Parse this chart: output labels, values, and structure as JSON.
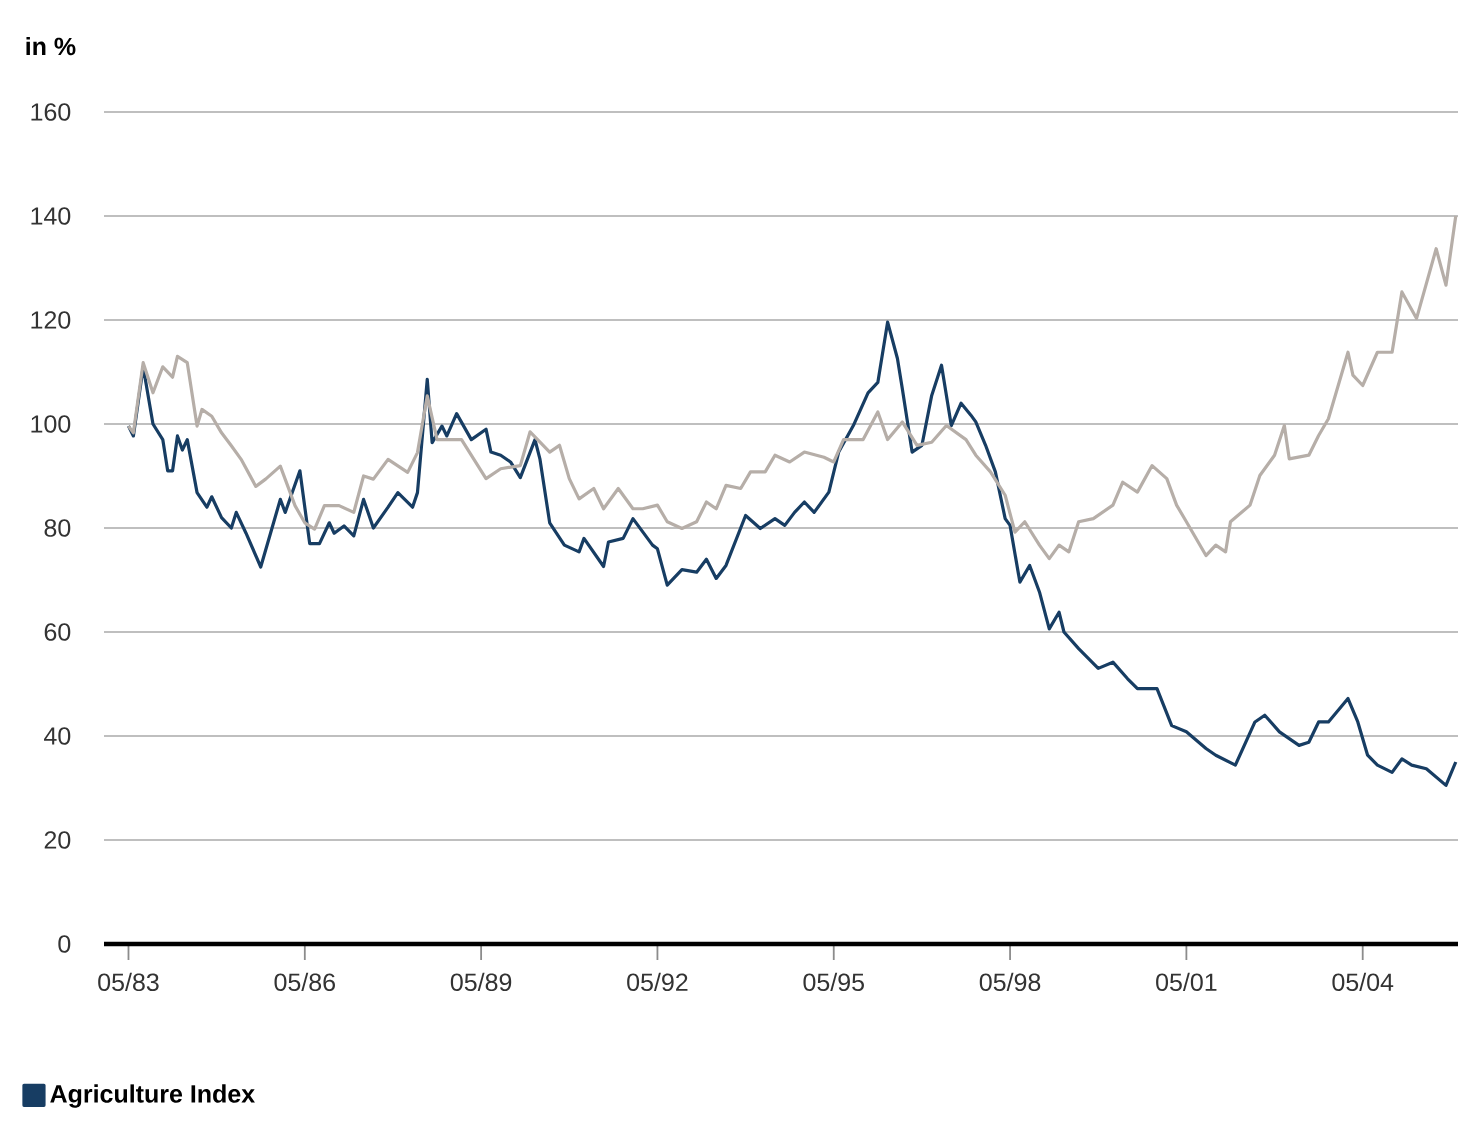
{
  "chart_data": {
    "type": "line",
    "ylabel": "in %",
    "grid": "y",
    "legend": "bottom left",
    "xlim": [
      "1982-12",
      "2005-12-15"
    ],
    "xticks": [
      {
        "value": "1983-05",
        "label": "05/83"
      },
      {
        "value": "1986-05",
        "label": "05/86"
      },
      {
        "value": "1989-05",
        "label": "05/89"
      },
      {
        "value": "1992-05",
        "label": "05/92"
      },
      {
        "value": "1995-05",
        "label": "05/95"
      },
      {
        "value": "1998-05",
        "label": "05/98"
      },
      {
        "value": "2001-05",
        "label": "05/01"
      },
      {
        "value": "2004-05",
        "label": "05/04"
      }
    ],
    "ylim": [
      0,
      160
    ],
    "yticks": [
      0,
      20,
      40,
      60,
      80,
      100,
      120,
      140,
      160
    ],
    "series": [
      {
        "name": "Agriculture Index",
        "color": "#173d63",
        "x": [
          "1983-05",
          "1983-06",
          "1983-08",
          "1983-10",
          "1983-12",
          "1984-01",
          "1984-02",
          "1984-03",
          "1984-04",
          "1984-05",
          "1984-07",
          "1984-09",
          "1984-10",
          "1984-12",
          "1985-02",
          "1985-03",
          "1985-05",
          "1985-08",
          "1985-10",
          "1985-12",
          "1986-01",
          "1986-04",
          "1986-06",
          "1986-08",
          "1986-10",
          "1986-11",
          "1987-01",
          "1987-03",
          "1987-05",
          "1987-07",
          "1987-10",
          "1987-12",
          "1988-03",
          "1988-04",
          "1988-06",
          "1988-07",
          "1988-09",
          "1988-10",
          "1988-12",
          "1989-03",
          "1989-06",
          "1989-07",
          "1989-09",
          "1989-11",
          "1990-01",
          "1990-04",
          "1990-05",
          "1990-07",
          "1990-10",
          "1991-01",
          "1991-02",
          "1991-06",
          "1991-07",
          "1991-10",
          "1991-12",
          "1992-04",
          "1992-05",
          "1992-07",
          "1992-10",
          "1993-01",
          "1993-03",
          "1993-05",
          "1993-07",
          "1993-11",
          "1994-02",
          "1994-05",
          "1994-07",
          "1994-09",
          "1994-11",
          "1995-01",
          "1995-04",
          "1995-06",
          "1995-09",
          "1995-12",
          "1996-02",
          "1996-04",
          "1996-06",
          "1996-07",
          "1996-09",
          "1996-11",
          "1997-01",
          "1997-03",
          "1997-05",
          "1997-07",
          "1997-09",
          "1997-10",
          "1997-12",
          "1998-02",
          "1998-04",
          "1998-05",
          "1998-07",
          "1998-09",
          "1998-11",
          "1999-01",
          "1999-03",
          "1999-04",
          "1999-07",
          "1999-11",
          "2000-02",
          "2000-05",
          "2000-07",
          "2000-11",
          "2001-02",
          "2001-05",
          "2001-09",
          "2001-11",
          "2002-03",
          "2002-07",
          "2002-09",
          "2002-12",
          "2003-04",
          "2003-06",
          "2003-08",
          "2003-10",
          "2004-02",
          "2004-04",
          "2004-06",
          "2004-08",
          "2004-11",
          "2005-01",
          "2005-03",
          "2005-06",
          "2005-10",
          "2005-12"
        ],
        "values": [
          99.6,
          97.7,
          111,
          100,
          97,
          91,
          91,
          97.7,
          95,
          97,
          86.8,
          84,
          86,
          82,
          80,
          83,
          79,
          72.5,
          79,
          85.5,
          83,
          91,
          77,
          77,
          81,
          79,
          80.4,
          78.5,
          85.5,
          80,
          84,
          86.8,
          84,
          86.8,
          108.6,
          96.4,
          99.6,
          97.7,
          102,
          97,
          99,
          94.6,
          94,
          92.7,
          89.7,
          97,
          93.3,
          81,
          76.7,
          75.4,
          78,
          72.6,
          77.3,
          78,
          81.8,
          76.7,
          76,
          69,
          72,
          71.5,
          74,
          70.3,
          72.8,
          82.4,
          79.9,
          81.8,
          80.5,
          83,
          85,
          83,
          86.9,
          94.6,
          99.7,
          106,
          108,
          119.6,
          112.6,
          106.8,
          94.6,
          95.9,
          105.5,
          111.3,
          99.7,
          104,
          101.7,
          100.4,
          95.9,
          90.8,
          81.8,
          80.5,
          69.6,
          72.8,
          67.7,
          60.6,
          63.8,
          60,
          56.8,
          53,
          54.2,
          51,
          49.1,
          49.1,
          42,
          40.8,
          37.6,
          36.3,
          34.4,
          42.7,
          44,
          40.8,
          38.2,
          38.8,
          42.7,
          42.7,
          47.2,
          42.7,
          36.3,
          34.4,
          33,
          35.6,
          34.4,
          33.7,
          30.5,
          35
        ]
      },
      {
        "color": "#b6aea8",
        "x": [
          "1983-05",
          "1983-06",
          "1983-08",
          "1983-10",
          "1983-12",
          "1984-02",
          "1984-03",
          "1984-05",
          "1984-07",
          "1984-08",
          "1984-10",
          "1984-12",
          "1985-02",
          "1985-04",
          "1985-07",
          "1985-09",
          "1985-12",
          "1986-03",
          "1986-05",
          "1986-07",
          "1986-09",
          "1986-12",
          "1987-03",
          "1987-05",
          "1987-07",
          "1987-10",
          "1988-02",
          "1988-04",
          "1988-06",
          "1988-08",
          "1988-10",
          "1989-01",
          "1989-06",
          "1989-09",
          "1990-01",
          "1990-03",
          "1990-07",
          "1990-09",
          "1990-11",
          "1991-01",
          "1991-04",
          "1991-06",
          "1991-09",
          "1991-12",
          "1992-02",
          "1992-05",
          "1992-07",
          "1992-10",
          "1993-01",
          "1993-03",
          "1993-05",
          "1993-07",
          "1993-10",
          "1993-12",
          "1994-03",
          "1994-05",
          "1994-08",
          "1994-11",
          "1995-03",
          "1995-05",
          "1995-07",
          "1995-11",
          "1996-02",
          "1996-04",
          "1996-07",
          "1996-10",
          "1997-01",
          "1997-04",
          "1997-08",
          "1997-10",
          "1998-01",
          "1998-04",
          "1998-06",
          "1998-08",
          "1998-11",
          "1999-01",
          "1999-03",
          "1999-05",
          "1999-07",
          "1999-10",
          "2000-02",
          "2000-04",
          "2000-07",
          "2000-10",
          "2001-01",
          "2001-03",
          "2001-05",
          "2001-09",
          "2001-11",
          "2002-01",
          "2002-02",
          "2002-06",
          "2002-08",
          "2002-11",
          "2003-01",
          "2003-02",
          "2003-06",
          "2003-08",
          "2003-10",
          "2004-02",
          "2004-03",
          "2004-05",
          "2004-08",
          "2004-11",
          "2005-01",
          "2005-04",
          "2005-08",
          "2005-10",
          "2005-12"
        ],
        "values": [
          99.6,
          98.3,
          111.8,
          106,
          111,
          109,
          113,
          111.8,
          99.6,
          102.8,
          101.5,
          98.3,
          95.8,
          93.2,
          88,
          89.4,
          91.9,
          84.3,
          81,
          79.8,
          84.3,
          84.3,
          83,
          90,
          89.4,
          93.2,
          90.7,
          94.5,
          105.4,
          97,
          97,
          97,
          89.5,
          91.4,
          92,
          98.5,
          94.6,
          95.9,
          89.5,
          85.6,
          87.6,
          83.7,
          87.6,
          83.7,
          83.7,
          84.4,
          81.2,
          79.9,
          81.2,
          85,
          83.7,
          88.2,
          87.6,
          90.8,
          90.8,
          94,
          92.7,
          94.6,
          93.6,
          92.7,
          97,
          97,
          102.3,
          97,
          100.4,
          95.9,
          96.5,
          99.7,
          97,
          94,
          90.8,
          86.3,
          79.2,
          81.2,
          76.7,
          74.1,
          76.7,
          75.4,
          81.2,
          81.8,
          84.4,
          88.8,
          86.9,
          92,
          89.5,
          84.4,
          81.2,
          74.7,
          76.7,
          75.4,
          81.2,
          84.4,
          90.1,
          94,
          99.7,
          93.3,
          94,
          97.8,
          101,
          113.8,
          109.4,
          107.4,
          113.8,
          113.8,
          125.4,
          120.3,
          133.7,
          126.7,
          140
        ]
      }
    ]
  }
}
